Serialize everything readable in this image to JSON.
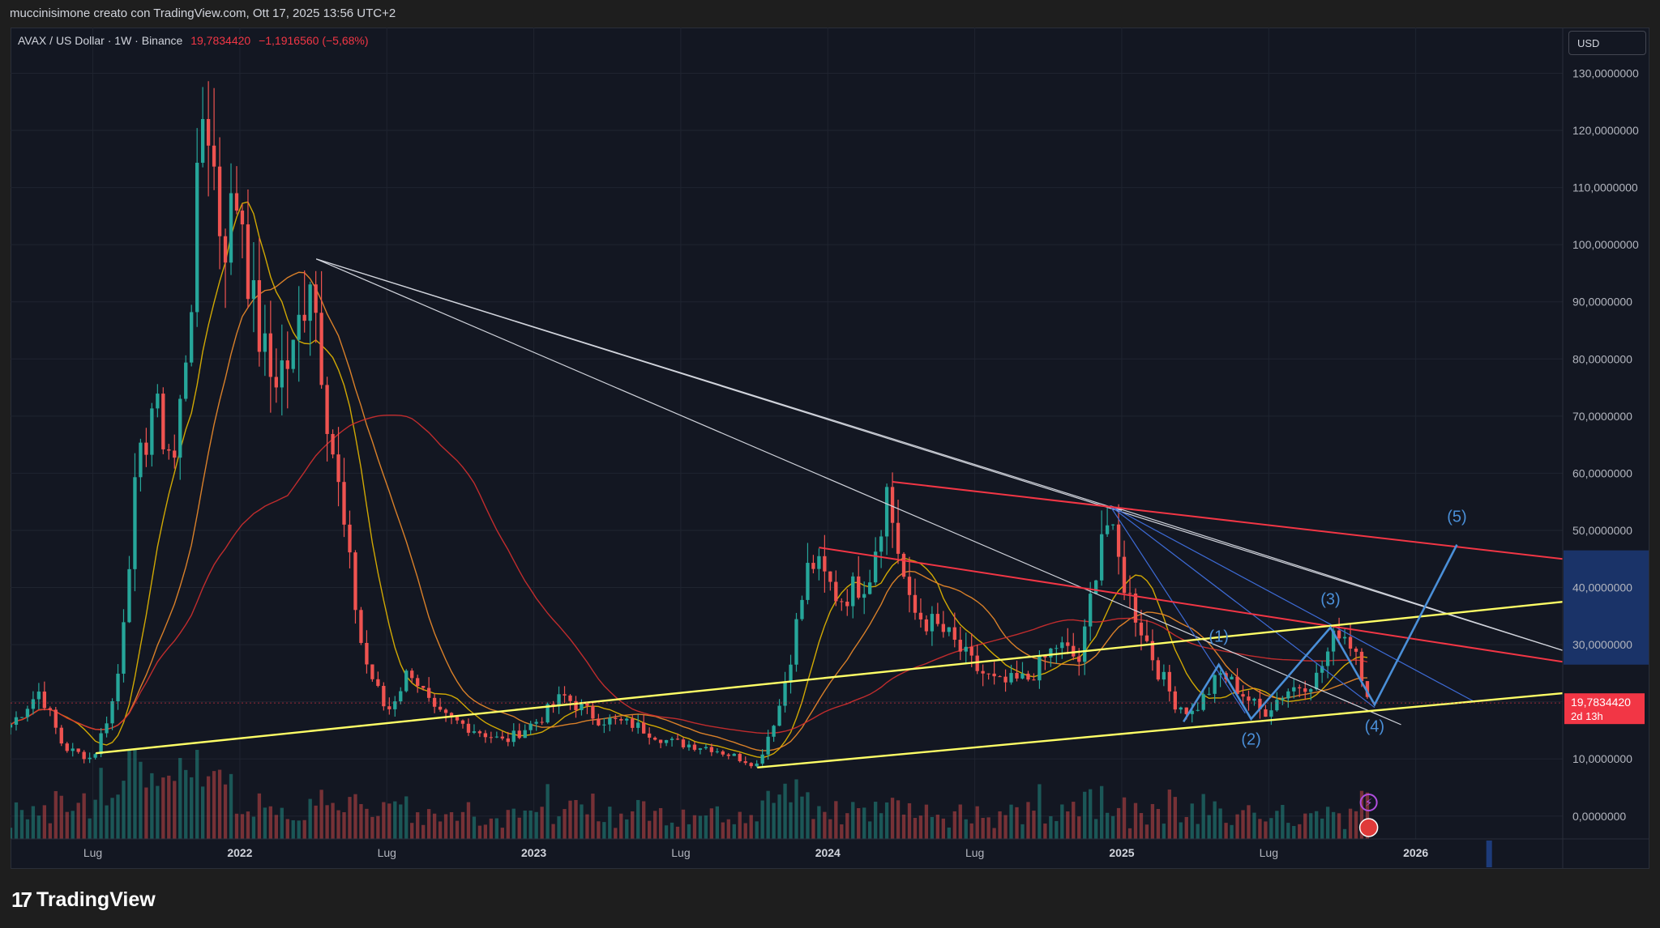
{
  "header": {
    "attribution": "muccinisimone creato con TradingView.com, Ott 17, 2025 13:56 UTC+2"
  },
  "legend": {
    "symbol": "AVAX / US Dollar · 1W · Binance",
    "last": "19,7834420",
    "change": "−1,1916560 (−5,68%)"
  },
  "currency_button": "USD",
  "footer": {
    "brand": "TradingView",
    "logo_icon": "tradingview-logo-icon"
  },
  "colors": {
    "background": "#131722",
    "up": "#26a69a",
    "down": "#ef5350",
    "yellow_line": "#ffff66",
    "red_line": "#f23645",
    "white_line": "#d1d4dc",
    "wave": "#4a8fd8",
    "ma_fast": "#e6b800",
    "ma_mid": "#f08c2a",
    "ma_slow": "#d32f2f"
  },
  "chart_data": {
    "type": "candlestick",
    "title": "AVAX / US Dollar · 1W · Binance",
    "ylim": [
      -4,
      138
    ],
    "y_ticks": [
      "130,0000000",
      "120,0000000",
      "110,0000000",
      "100,0000000",
      "90,0000000",
      "80,0000000",
      "70,0000000",
      "60,0000000",
      "50,0000000",
      "40,0000000",
      "30,0000000",
      "20,0000000",
      "10,0000000",
      "0,0000000"
    ],
    "y_tick_values": [
      130,
      120,
      110,
      100,
      90,
      80,
      70,
      60,
      50,
      40,
      30,
      20,
      10,
      0
    ],
    "x_ticks": [
      {
        "label": "Lug",
        "t": 2021.5
      },
      {
        "label": "2022",
        "t": 2022.0
      },
      {
        "label": "Lug",
        "t": 2022.5
      },
      {
        "label": "2023",
        "t": 2023.0
      },
      {
        "label": "Lug",
        "t": 2023.5
      },
      {
        "label": "2024",
        "t": 2024.0
      },
      {
        "label": "Lug",
        "t": 2024.5
      },
      {
        "label": "2025",
        "t": 2025.0
      },
      {
        "label": "Lug",
        "t": 2025.5
      },
      {
        "label": "2026",
        "t": 2026.0
      }
    ],
    "xlim": [
      2021.22,
      2026.5
    ],
    "price_anchors": [
      [
        2021.22,
        16
      ],
      [
        2021.32,
        22
      ],
      [
        2021.4,
        12
      ],
      [
        2021.5,
        10
      ],
      [
        2021.58,
        22
      ],
      [
        2021.64,
        55
      ],
      [
        2021.7,
        72
      ],
      [
        2021.78,
        62
      ],
      [
        2021.84,
        95
      ],
      [
        2021.88,
        128
      ],
      [
        2021.94,
        100
      ],
      [
        2022.0,
        110
      ],
      [
        2022.04,
        90
      ],
      [
        2022.1,
        77
      ],
      [
        2022.18,
        80
      ],
      [
        2022.24,
        97
      ],
      [
        2022.3,
        70
      ],
      [
        2022.36,
        48
      ],
      [
        2022.42,
        28
      ],
      [
        2022.5,
        18
      ],
      [
        2022.58,
        26
      ],
      [
        2022.66,
        18
      ],
      [
        2022.76,
        16
      ],
      [
        2022.9,
        13
      ],
      [
        2023.02,
        17
      ],
      [
        2023.1,
        21
      ],
      [
        2023.22,
        17
      ],
      [
        2023.34,
        16
      ],
      [
        2023.46,
        13
      ],
      [
        2023.6,
        12
      ],
      [
        2023.76,
        9
      ],
      [
        2023.84,
        20
      ],
      [
        2023.94,
        45
      ],
      [
        2024.04,
        38
      ],
      [
        2024.14,
        42
      ],
      [
        2024.2,
        57
      ],
      [
        2024.28,
        36
      ],
      [
        2024.4,
        32
      ],
      [
        2024.5,
        26
      ],
      [
        2024.58,
        23
      ],
      [
        2024.68,
        24
      ],
      [
        2024.78,
        30
      ],
      [
        2024.86,
        27
      ],
      [
        2024.94,
        53
      ],
      [
        2025.02,
        39
      ],
      [
        2025.12,
        26
      ],
      [
        2025.18,
        20
      ],
      [
        2025.24,
        18
      ],
      [
        2025.34,
        25
      ],
      [
        2025.4,
        22
      ],
      [
        2025.48,
        18
      ],
      [
        2025.56,
        22
      ],
      [
        2025.66,
        24
      ],
      [
        2025.74,
        33
      ],
      [
        2025.8,
        29
      ],
      [
        2025.84,
        19.78
      ]
    ],
    "overlay_lines": {
      "yellow": [
        [
          [
            2021.51,
            11
          ],
          [
            2026.5,
            37.5
          ]
        ],
        [
          [
            2023.76,
            8.5
          ],
          [
            2026.5,
            21.5
          ]
        ]
      ],
      "red": [
        [
          [
            2024.22,
            58.5
          ],
          [
            2026.5,
            45
          ]
        ],
        [
          [
            2023.97,
            47
          ],
          [
            2026.5,
            27
          ]
        ]
      ],
      "white_fan_from_2022_peak": [
        [
          [
            2022.26,
            97.5
          ],
          [
            2026.5,
            29
          ]
        ],
        [
          [
            2022.26,
            97.5
          ],
          [
            2025.0,
            53.5
          ]
        ],
        [
          [
            2022.26,
            97.5
          ],
          [
            2025.95,
            16
          ]
        ]
      ],
      "white_from_2025": [
        [
          [
            2024.96,
            54.3
          ],
          [
            2026.5,
            29
          ]
        ]
      ],
      "blue_fan": [
        [
          [
            2024.96,
            54.3
          ],
          [
            2026.2,
            20
          ]
        ],
        [
          [
            2024.96,
            54.3
          ],
          [
            2025.42,
            18
          ]
        ],
        [
          [
            2024.96,
            54.3
          ],
          [
            2025.86,
            19
          ]
        ]
      ]
    },
    "wave_path": [
      [
        2025.21,
        16.5
      ],
      [
        2025.33,
        26.5
      ],
      [
        2025.44,
        17
      ],
      [
        2025.71,
        33
      ],
      [
        2025.86,
        19.5
      ],
      [
        2026.14,
        47.5
      ]
    ],
    "wave_labels": [
      {
        "text": "(1)",
        "t": 2025.33,
        "v": 30.5
      },
      {
        "text": "(2)",
        "t": 2025.44,
        "v": 12.5
      },
      {
        "text": "(3)",
        "t": 2025.71,
        "v": 37
      },
      {
        "text": "(4)",
        "t": 2025.86,
        "v": 14.8
      },
      {
        "text": "(5)",
        "t": 2026.14,
        "v": 51.5
      }
    ],
    "last_price_label": "19,7834420",
    "last_price_value": 19.783442,
    "countdown": "2d 13h"
  }
}
